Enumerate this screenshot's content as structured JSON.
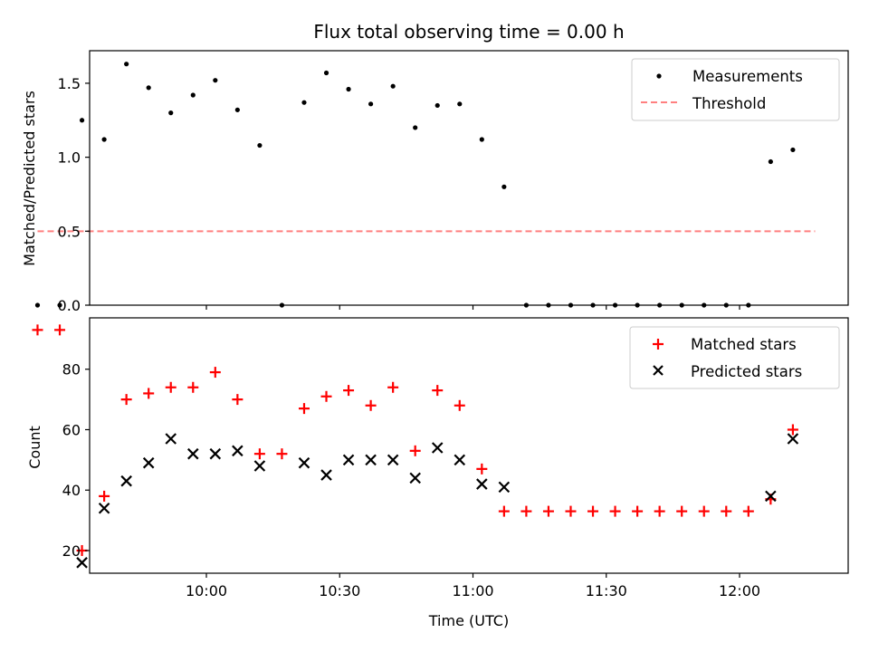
{
  "chart_data": [
    {
      "type": "scatter",
      "title": "Flux total observing time = 0.00 h",
      "xlabel": "",
      "ylabel": "Matched/Predicted stars",
      "ylim": [
        0,
        1.72
      ],
      "yticks": [
        "0.0",
        "0.5",
        "1.0",
        "1.5"
      ],
      "grid": false,
      "legend_position": "top-right",
      "series": [
        {
          "name": "Measurements",
          "color": "#000000",
          "marker": "dot",
          "x": [
            "09:22",
            "09:27",
            "09:32",
            "09:37",
            "09:42",
            "09:47",
            "09:52",
            "09:57",
            "10:02",
            "10:07",
            "10:12",
            "10:17",
            "10:22",
            "10:27",
            "10:32",
            "10:37",
            "10:42",
            "10:47",
            "10:52",
            "10:57",
            "11:02",
            "11:07",
            "11:12",
            "11:17",
            "11:22",
            "11:27",
            "11:32",
            "11:37",
            "11:42",
            "11:47",
            "11:52",
            "11:57",
            "12:02",
            "12:07",
            "12:12"
          ],
          "y": [
            0,
            0,
            1.25,
            1.12,
            1.63,
            1.47,
            1.3,
            1.42,
            1.52,
            1.32,
            1.08,
            0,
            1.37,
            1.57,
            1.46,
            1.36,
            1.48,
            1.2,
            1.35,
            1.36,
            1.12,
            0.8,
            0,
            0,
            0,
            0,
            0,
            0,
            0,
            0,
            0,
            0,
            0,
            0.97,
            1.05
          ]
        },
        {
          "name": "Threshold",
          "color": "#ff8080",
          "line_style": "dashed",
          "x": [
            "09:22",
            "12:17"
          ],
          "y": [
            0.5,
            0.5
          ]
        }
      ]
    },
    {
      "type": "scatter",
      "title": "",
      "xlabel": "Time (UTC)",
      "ylabel": "Count",
      "ylim": [
        12.5,
        97
      ],
      "yticks": [
        "20",
        "40",
        "60",
        "80"
      ],
      "xticks": [
        "10:00",
        "10:30",
        "11:00",
        "11:30",
        "12:00"
      ],
      "grid": false,
      "legend_position": "top-right",
      "series": [
        {
          "name": "Matched stars",
          "color": "#ff0000",
          "marker": "plus",
          "x": [
            "09:22",
            "09:27",
            "09:32",
            "09:37",
            "09:42",
            "09:47",
            "09:52",
            "09:57",
            "10:02",
            "10:07",
            "10:12",
            "10:17",
            "10:22",
            "10:27",
            "10:32",
            "10:37",
            "10:42",
            "10:47",
            "10:52",
            "10:57",
            "11:02",
            "11:07",
            "11:12",
            "11:17",
            "11:22",
            "11:27",
            "11:32",
            "11:37",
            "11:42",
            "11:47",
            "11:52",
            "11:57",
            "12:02",
            "12:07",
            "12:12"
          ],
          "y": [
            93,
            93,
            20,
            38,
            70,
            72,
            74,
            74,
            79,
            70,
            52,
            52,
            67,
            71,
            73,
            68,
            74,
            53,
            73,
            68,
            47,
            33,
            33,
            33,
            33,
            33,
            33,
            33,
            33,
            33,
            33,
            33,
            33,
            37,
            60
          ]
        },
        {
          "name": "Predicted stars",
          "color": "#000000",
          "marker": "x",
          "x": [
            "09:32",
            "09:37",
            "09:42",
            "09:47",
            "09:52",
            "09:57",
            "10:02",
            "10:07",
            "10:12",
            "10:22",
            "10:27",
            "10:32",
            "10:37",
            "10:42",
            "10:47",
            "10:52",
            "10:57",
            "11:02",
            "11:07",
            "12:07",
            "12:12"
          ],
          "y": [
            16,
            34,
            43,
            49,
            57,
            52,
            52,
            53,
            48,
            49,
            45,
            50,
            50,
            50,
            44,
            54,
            50,
            42,
            41,
            38,
            57
          ]
        }
      ]
    }
  ]
}
